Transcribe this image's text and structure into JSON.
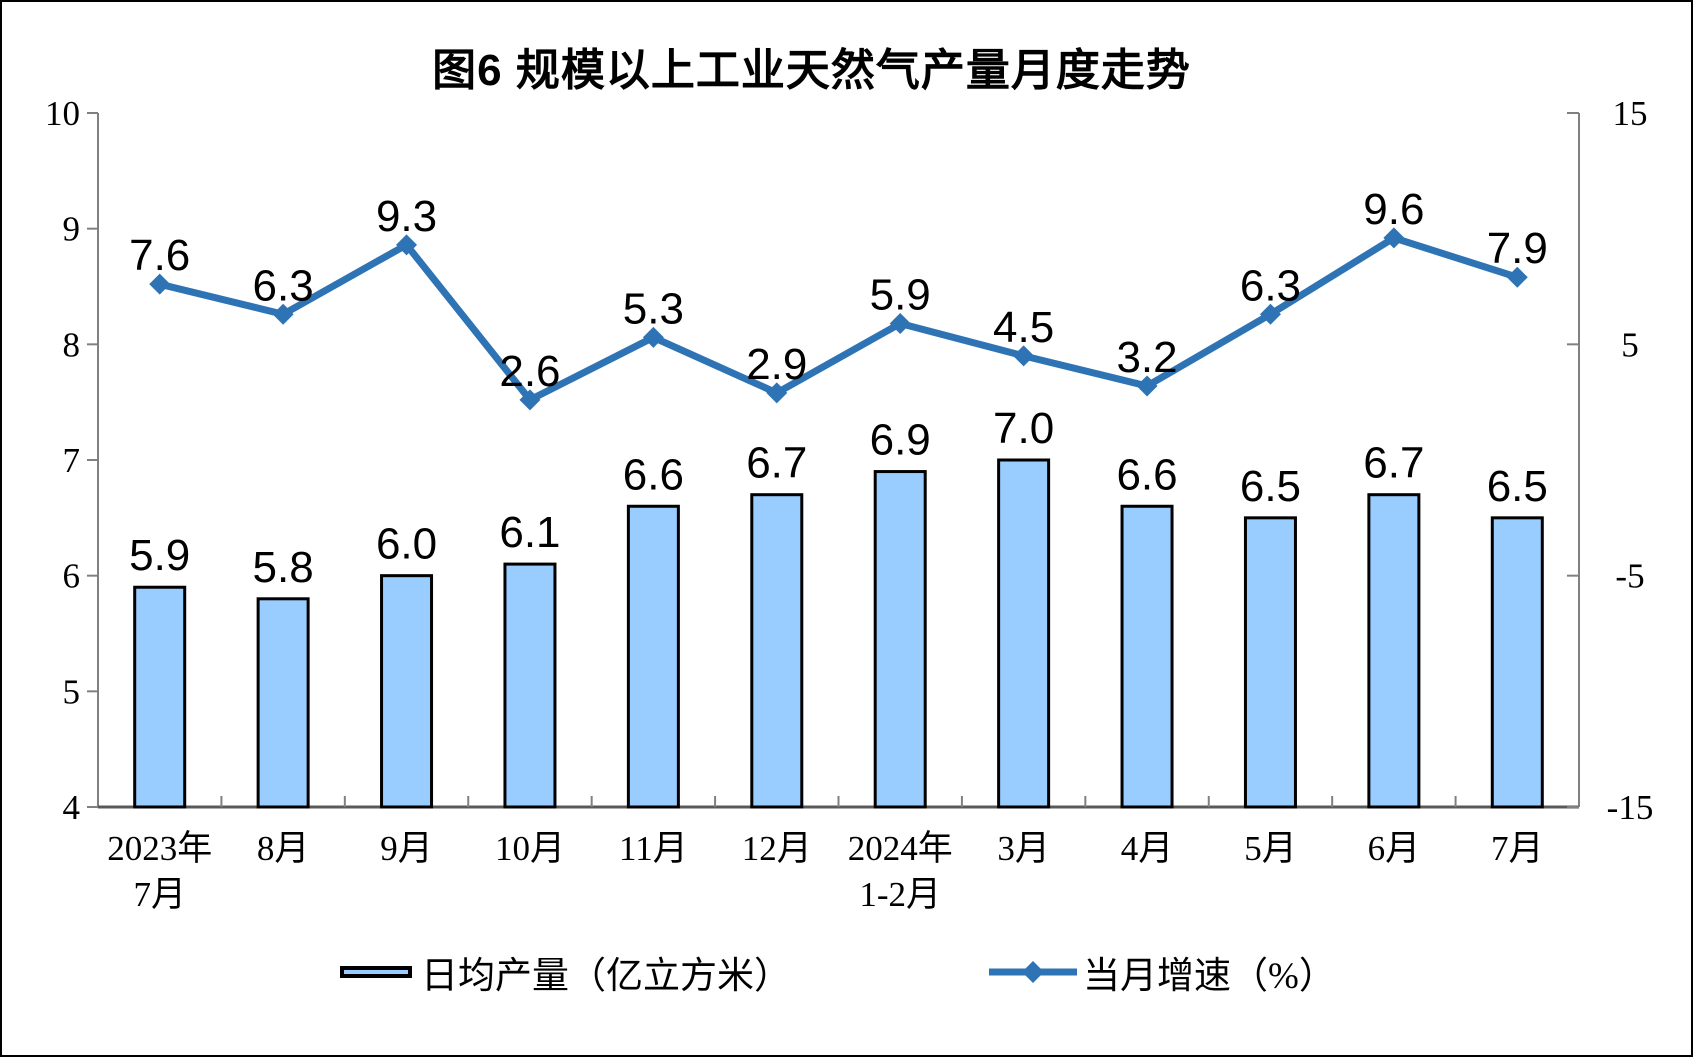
{
  "title": "图6 规模以上工业天然气产量月度走势",
  "chart_data": {
    "type": "bar+line",
    "categories": [
      "2023年7月",
      "8月",
      "9月",
      "10月",
      "11月",
      "12月",
      "2024年1-2月",
      "3月",
      "4月",
      "5月",
      "6月",
      "7月"
    ],
    "category_label_lines": [
      [
        "2023年",
        "7月"
      ],
      [
        "8月"
      ],
      [
        "9月"
      ],
      [
        "10月"
      ],
      [
        "11月"
      ],
      [
        "12月"
      ],
      [
        "2024年",
        "1-2月"
      ],
      [
        "3月"
      ],
      [
        "4月"
      ],
      [
        "5月"
      ],
      [
        "6月"
      ],
      [
        "7月"
      ]
    ],
    "series": [
      {
        "name": "日均产量（亿立方米）",
        "type": "bar",
        "axis": "left",
        "values": [
          5.9,
          5.8,
          6.0,
          6.1,
          6.6,
          6.7,
          6.9,
          7.0,
          6.6,
          6.5,
          6.7,
          6.5
        ]
      },
      {
        "name": "当月增速（%）",
        "type": "line",
        "axis": "right",
        "values": [
          7.6,
          6.3,
          9.3,
          2.6,
          5.3,
          2.9,
          5.9,
          4.5,
          3.2,
          6.3,
          9.6,
          7.9
        ]
      }
    ],
    "left_axis": {
      "min": 4,
      "max": 10,
      "ticks": [
        10,
        9,
        8,
        7,
        6,
        5,
        4
      ]
    },
    "right_axis": {
      "min": -15,
      "max": 15,
      "ticks": [
        15,
        5,
        -5,
        -15
      ]
    },
    "legend": [
      {
        "label": "日均产量（亿立方米）",
        "swatch": "bar"
      },
      {
        "label": "当月增速（%）",
        "swatch": "line-diamond"
      }
    ],
    "colors": {
      "bar_fill": "#99CCFF",
      "bar_border": "#000000",
      "line": "#2E74B5",
      "data_label": "#000000",
      "axis_line": "#808080",
      "bottom_axis": "#595959"
    },
    "layout_hints": {
      "grid": "off",
      "legend_position": "bottom",
      "data_labels": "above points"
    }
  }
}
